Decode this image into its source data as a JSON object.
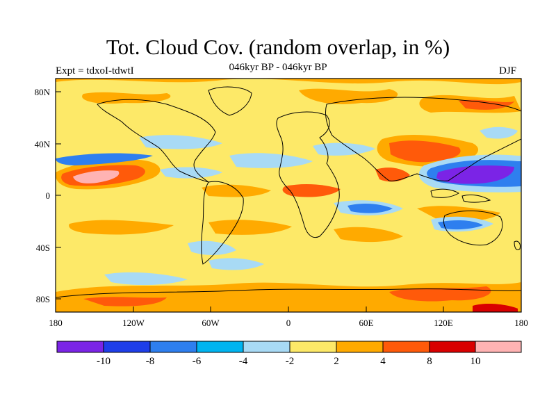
{
  "title": "Tot. Cloud Cov. (random overlap, in %)",
  "subtitle": "046kyr BP - 046kyr BP",
  "left_label": "Expt = tdxoI-tdwtI",
  "right_label": "DJF",
  "map": {
    "x_ticks": [
      "180",
      "120W",
      "60W",
      "0",
      "60E",
      "120E",
      "180"
    ],
    "y_ticks": [
      "80N",
      "40N",
      "0",
      "40S",
      "80S"
    ],
    "base_color": "#fde968"
  },
  "colorbar": {
    "colors": [
      "#7b24e6",
      "#1e3ee9",
      "#2e7fef",
      "#00b4f0",
      "#a8daf5",
      "#fde968",
      "#ffaa00",
      "#ff5a0a",
      "#d90000",
      "#ffb3b3"
    ],
    "labels": [
      "-10",
      "-8",
      "-6",
      "-4",
      "-2",
      "2",
      "4",
      "8",
      "10"
    ]
  },
  "anomaly_regions": [
    {
      "name": "north-pacific-positive",
      "color": "#ff5a0a"
    },
    {
      "name": "north-pacific-core",
      "color": "#ffb3b3"
    },
    {
      "name": "west-pacific-negative",
      "color": "#7b24e6"
    },
    {
      "name": "asia-positive",
      "color": "#ff5a0a"
    }
  ]
}
